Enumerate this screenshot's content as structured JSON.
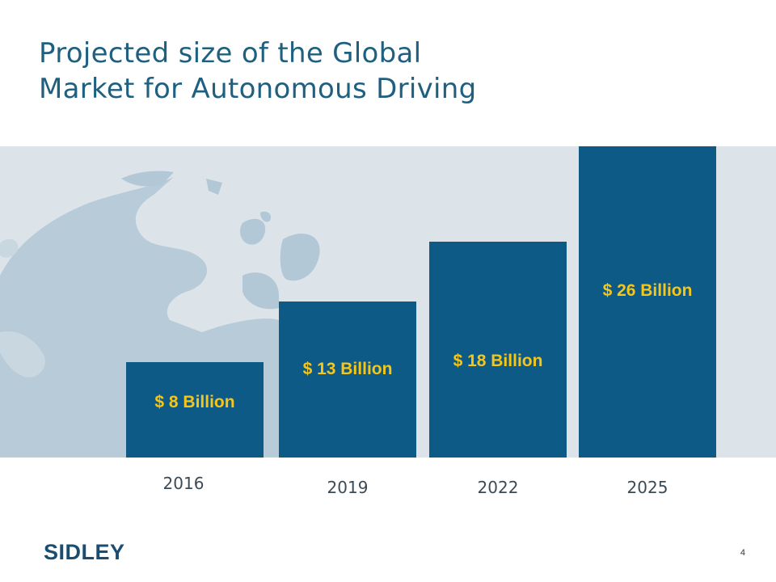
{
  "slide": {
    "title_line1": "Projected size of the Global",
    "title_line2": "Market for Autonomous Driving",
    "brand": "SIDLEY",
    "page_number": "4"
  },
  "colors": {
    "title": "#1f5f7f",
    "bar": "#0e5a87",
    "bar_label": "#f5c518",
    "background_band": "#dce4e9",
    "globe": "#b2c8d6"
  },
  "chart_data": {
    "type": "bar",
    "categories": [
      "2016",
      "2019",
      "2022",
      "2025"
    ],
    "values": [
      8,
      13,
      18,
      26
    ],
    "data_labels": [
      "$ 8 Billion",
      "$ 13 Billion",
      "$ 18 Billion",
      "$ 26 Billion"
    ],
    "title": "Projected size of the Global Market for Autonomous Driving",
    "xlabel": "",
    "ylabel": "",
    "ylim": [
      0,
      26
    ],
    "grid": false,
    "legend": "none"
  }
}
